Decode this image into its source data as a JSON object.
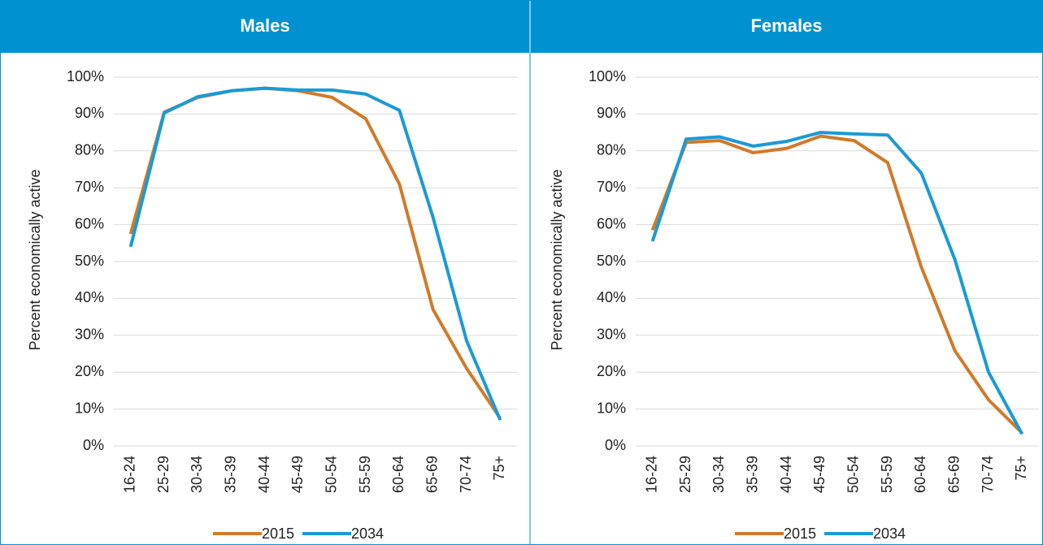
{
  "chart_data": [
    {
      "type": "line",
      "title": "Males",
      "ylabel": "Percent economically active",
      "categories": [
        "16-24",
        "25-29",
        "30-34",
        "35-39",
        "40-44",
        "45-49",
        "50-54",
        "55-59",
        "60-64",
        "65-69",
        "70-74",
        "75+"
      ],
      "series": [
        {
          "name": "2015",
          "color": "#d07a29",
          "values": [
            57.5,
            90.5,
            94.5,
            96.3,
            97,
            96.3,
            94.5,
            88.7,
            71,
            37,
            21,
            7.5
          ]
        },
        {
          "name": "2034",
          "color": "#1a9ad6",
          "values": [
            54,
            90.3,
            94.7,
            96.3,
            97,
            96.5,
            96.5,
            95.4,
            91,
            62,
            28.5,
            7
          ]
        }
      ],
      "ylim": [
        0,
        100
      ],
      "yticks": [
        {
          "value": 0,
          "label": "0%"
        },
        {
          "value": 10,
          "label": "10%"
        },
        {
          "value": 20,
          "label": "20%"
        },
        {
          "value": 30,
          "label": "30%"
        },
        {
          "value": 40,
          "label": "40%"
        },
        {
          "value": 50,
          "label": "50%"
        },
        {
          "value": 60,
          "label": "60%"
        },
        {
          "value": 70,
          "label": "70%"
        },
        {
          "value": 80,
          "label": "80%"
        },
        {
          "value": 90,
          "label": "90%"
        },
        {
          "value": 100,
          "label": "100%"
        }
      ],
      "grid": true,
      "legend": "bottom"
    },
    {
      "type": "line",
      "title": "Females",
      "ylabel": "Percent economically active",
      "categories": [
        "16-24",
        "25-29",
        "30-34",
        "35-39",
        "40-44",
        "45-49",
        "50-54",
        "55-59",
        "60-64",
        "65-69",
        "70-74",
        "75+"
      ],
      "series": [
        {
          "name": "2015",
          "color": "#d07a29",
          "values": [
            58.5,
            82.3,
            82.8,
            79.5,
            80.7,
            84,
            82.8,
            76.8,
            48.5,
            25.8,
            12.5,
            3.5
          ]
        },
        {
          "name": "2034",
          "color": "#1a9ad6",
          "values": [
            55.5,
            83.2,
            83.8,
            81.3,
            82.6,
            85,
            84.6,
            84.3,
            74,
            50.5,
            20,
            3.2
          ]
        }
      ],
      "ylim": [
        0,
        100
      ],
      "yticks": [
        {
          "value": 0,
          "label": "0%"
        },
        {
          "value": 10,
          "label": "10%"
        },
        {
          "value": 20,
          "label": "20%"
        },
        {
          "value": 30,
          "label": "30%"
        },
        {
          "value": 40,
          "label": "40%"
        },
        {
          "value": 50,
          "label": "50%"
        },
        {
          "value": 60,
          "label": "60%"
        },
        {
          "value": 70,
          "label": "70%"
        },
        {
          "value": 80,
          "label": "80%"
        },
        {
          "value": 90,
          "label": "90%"
        },
        {
          "value": 100,
          "label": "100%"
        }
      ],
      "grid": true,
      "legend": "bottom"
    }
  ]
}
